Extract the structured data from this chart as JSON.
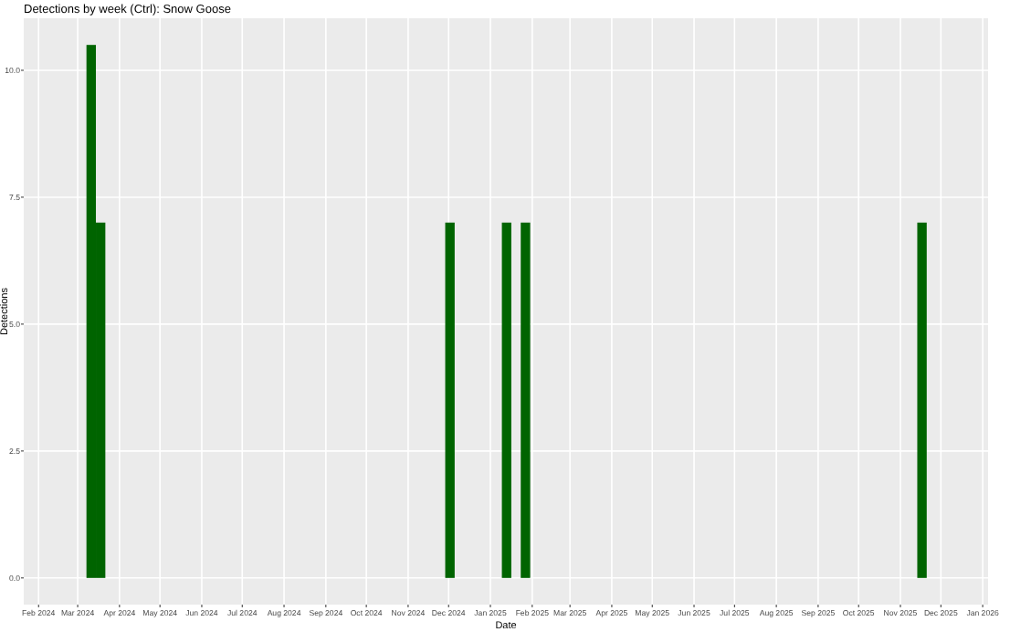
{
  "chart_data": {
    "type": "bar",
    "title": "Detections by week (Ctrl): Snow Goose",
    "xlabel": "Date",
    "ylabel": "Detections",
    "x": [
      "2024-03-11",
      "2024-03-18",
      "2024-12-02",
      "2025-01-13",
      "2025-01-27",
      "2025-11-17"
    ],
    "values": [
      10.5,
      7,
      7,
      7,
      7,
      7
    ],
    "color": "#006400",
    "xlim": [
      "2024-01-21",
      "2026-01-05"
    ],
    "xticks": [
      {
        "value": "2024-02-01",
        "label": "Feb 2024"
      },
      {
        "value": "2024-03-01",
        "label": "Mar 2024"
      },
      {
        "value": "2024-04-01",
        "label": "Apr 2024"
      },
      {
        "value": "2024-05-01",
        "label": "May 2024"
      },
      {
        "value": "2024-06-01",
        "label": "Jun 2024"
      },
      {
        "value": "2024-07-01",
        "label": "Jul 2024"
      },
      {
        "value": "2024-08-01",
        "label": "Aug 2024"
      },
      {
        "value": "2024-09-01",
        "label": "Sep 2024"
      },
      {
        "value": "2024-10-01",
        "label": "Oct 2024"
      },
      {
        "value": "2024-11-01",
        "label": "Nov 2024"
      },
      {
        "value": "2024-12-01",
        "label": "Dec 2024"
      },
      {
        "value": "2025-01-01",
        "label": "Jan 2025"
      },
      {
        "value": "2025-02-01",
        "label": "Feb 2025"
      },
      {
        "value": "2025-03-01",
        "label": "Mar 2025"
      },
      {
        "value": "2025-04-01",
        "label": "Apr 2025"
      },
      {
        "value": "2025-05-01",
        "label": "May 2025"
      },
      {
        "value": "2025-06-01",
        "label": "Jun 2025"
      },
      {
        "value": "2025-07-01",
        "label": "Jul 2025"
      },
      {
        "value": "2025-08-01",
        "label": "Aug 2025"
      },
      {
        "value": "2025-09-01",
        "label": "Sep 2025"
      },
      {
        "value": "2025-10-01",
        "label": "Oct 2025"
      },
      {
        "value": "2025-11-01",
        "label": "Nov 2025"
      },
      {
        "value": "2025-12-01",
        "label": "Dec 2025"
      },
      {
        "value": "2026-01-01",
        "label": "Jan 2026"
      }
    ],
    "ylim": [
      -0.525,
      11.025
    ],
    "yticks": [
      {
        "value": 0,
        "label": "0.0"
      },
      {
        "value": 2.5,
        "label": "2.5"
      },
      {
        "value": 5,
        "label": "5.0"
      },
      {
        "value": 7.5,
        "label": "7.5"
      },
      {
        "value": 10,
        "label": "10.0"
      }
    ],
    "grid": true
  }
}
